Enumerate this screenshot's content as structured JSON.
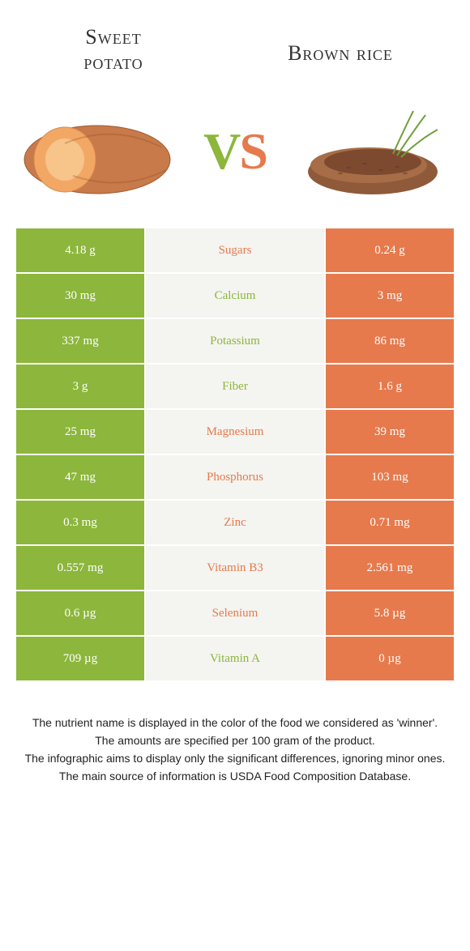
{
  "header": {
    "left_title_line1": "Sweet",
    "left_title_line2": "potato",
    "right_title": "Brown rice"
  },
  "vs": {
    "v": "V",
    "s": "S"
  },
  "colors": {
    "green": "#8cb63c",
    "orange": "#e67a4d",
    "mid_bg": "#f4f4f0",
    "text": "#333333"
  },
  "rows": [
    {
      "left": "4.18 g",
      "label": "Sugars",
      "right": "0.24 g",
      "winner": "orange"
    },
    {
      "left": "30 mg",
      "label": "Calcium",
      "right": "3 mg",
      "winner": "green"
    },
    {
      "left": "337 mg",
      "label": "Potassium",
      "right": "86 mg",
      "winner": "green"
    },
    {
      "left": "3 g",
      "label": "Fiber",
      "right": "1.6 g",
      "winner": "green"
    },
    {
      "left": "25 mg",
      "label": "Magnesium",
      "right": "39 mg",
      "winner": "orange"
    },
    {
      "left": "47 mg",
      "label": "Phosphorus",
      "right": "103 mg",
      "winner": "orange"
    },
    {
      "left": "0.3 mg",
      "label": "Zinc",
      "right": "0.71 mg",
      "winner": "orange"
    },
    {
      "left": "0.557 mg",
      "label": "Vitamin B3",
      "right": "2.561 mg",
      "winner": "orange"
    },
    {
      "left": "0.6 µg",
      "label": "Selenium",
      "right": "5.8 µg",
      "winner": "orange"
    },
    {
      "left": "709 µg",
      "label": "Vitamin A",
      "right": "0 µg",
      "winner": "green"
    }
  ],
  "footer": {
    "l1": "The nutrient name is displayed in the color of the food we considered as 'winner'.",
    "l2": "The amounts are specified per 100 gram of the product.",
    "l3": "The infographic aims to display only the significant differences, ignoring minor ones.",
    "l4": "The main source of information is USDA Food Composition Database."
  }
}
